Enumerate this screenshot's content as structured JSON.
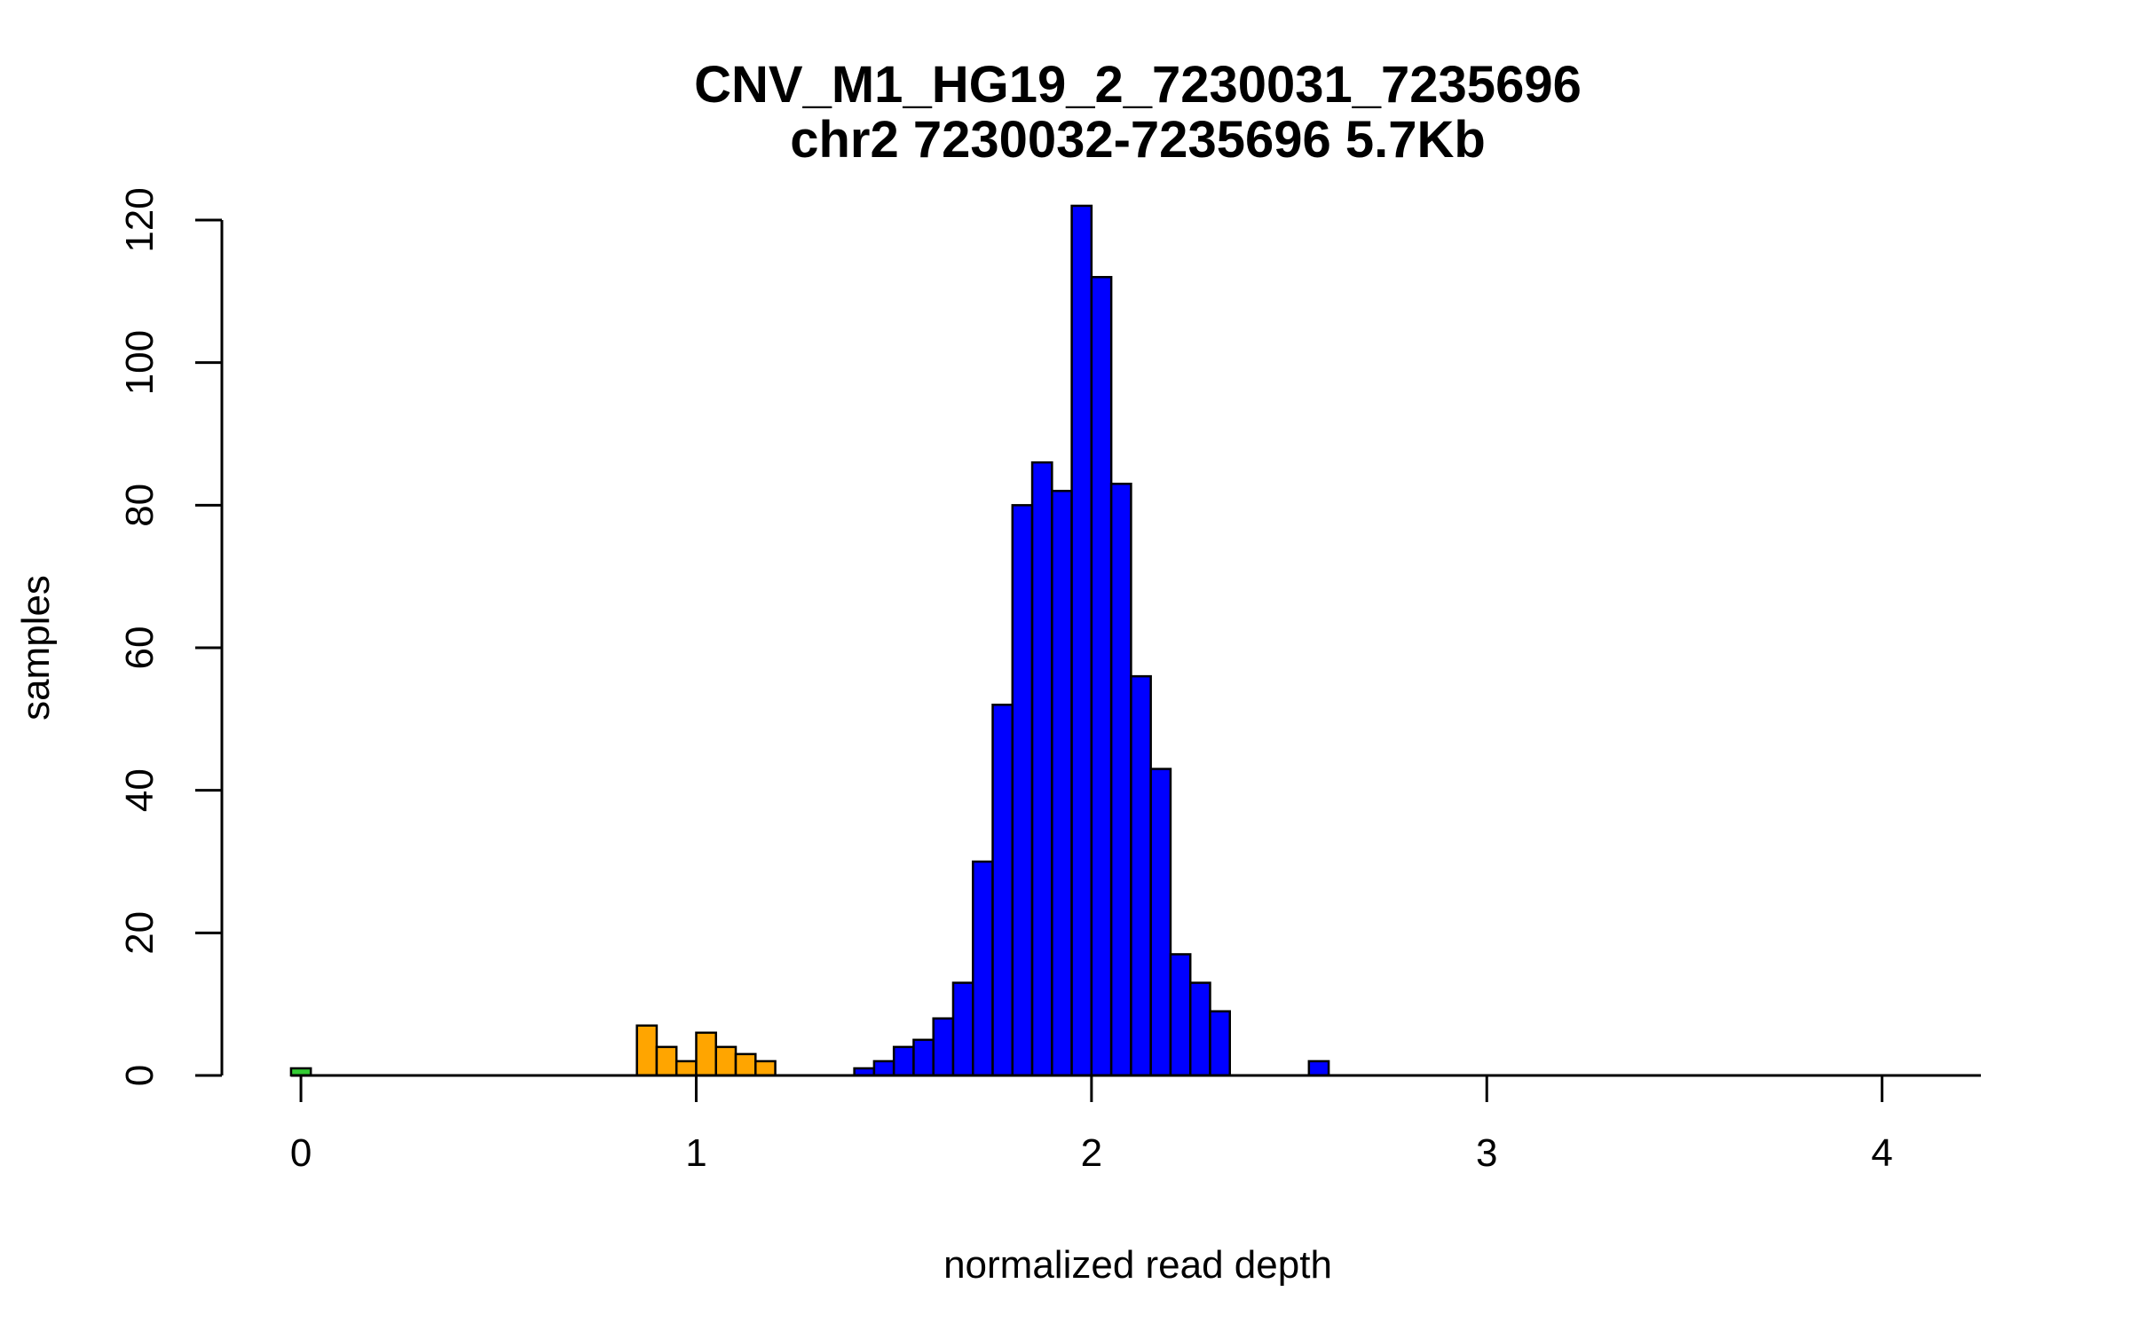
{
  "chart_data": {
    "type": "bar",
    "title": "CNV_M1_HG19_2_7230031_7235696",
    "subtitle": "chr2 7230032-7235696 5.7Kb",
    "xlabel": "normalized read depth",
    "ylabel": "samples",
    "xlim": [
      -0.2,
      4.25
    ],
    "ylim": [
      0,
      120
    ],
    "bin_width": 0.05,
    "x_ticks": [
      0,
      1,
      2,
      3,
      4
    ],
    "x_tick_labels": [
      "0",
      "1",
      "2",
      "3",
      "4"
    ],
    "y_ticks": [
      0,
      20,
      40,
      60,
      80,
      100,
      120
    ],
    "y_tick_labels": [
      "0",
      "20",
      "40",
      "60",
      "80",
      "100",
      "120"
    ],
    "grid": false,
    "legend": "none",
    "colors": {
      "green": "#33cc33",
      "orange": "#ffa500",
      "blue": "#0000ff"
    },
    "bins": [
      {
        "start": -0.025,
        "count": 1,
        "color": "green"
      },
      {
        "start": 0.85,
        "count": 7,
        "color": "orange"
      },
      {
        "start": 0.9,
        "count": 4,
        "color": "orange"
      },
      {
        "start": 0.95,
        "count": 2,
        "color": "orange"
      },
      {
        "start": 1.0,
        "count": 6,
        "color": "orange"
      },
      {
        "start": 1.05,
        "count": 4,
        "color": "orange"
      },
      {
        "start": 1.1,
        "count": 3,
        "color": "orange"
      },
      {
        "start": 1.15,
        "count": 2,
        "color": "orange"
      },
      {
        "start": 1.4,
        "count": 1,
        "color": "blue"
      },
      {
        "start": 1.45,
        "count": 2,
        "color": "blue"
      },
      {
        "start": 1.5,
        "count": 4,
        "color": "blue"
      },
      {
        "start": 1.55,
        "count": 5,
        "color": "blue"
      },
      {
        "start": 1.6,
        "count": 8,
        "color": "blue"
      },
      {
        "start": 1.65,
        "count": 13,
        "color": "blue"
      },
      {
        "start": 1.7,
        "count": 30,
        "color": "blue"
      },
      {
        "start": 1.75,
        "count": 52,
        "color": "blue"
      },
      {
        "start": 1.8,
        "count": 80,
        "color": "blue"
      },
      {
        "start": 1.85,
        "count": 86,
        "color": "blue"
      },
      {
        "start": 1.9,
        "count": 82,
        "color": "blue"
      },
      {
        "start": 1.95,
        "count": 122,
        "color": "blue"
      },
      {
        "start": 2.0,
        "count": 112,
        "color": "blue"
      },
      {
        "start": 2.05,
        "count": 83,
        "color": "blue"
      },
      {
        "start": 2.1,
        "count": 56,
        "color": "blue"
      },
      {
        "start": 2.15,
        "count": 43,
        "color": "blue"
      },
      {
        "start": 2.2,
        "count": 17,
        "color": "blue"
      },
      {
        "start": 2.25,
        "count": 13,
        "color": "blue"
      },
      {
        "start": 2.3,
        "count": 9,
        "color": "blue"
      },
      {
        "start": 2.55,
        "count": 2,
        "color": "blue"
      }
    ]
  }
}
